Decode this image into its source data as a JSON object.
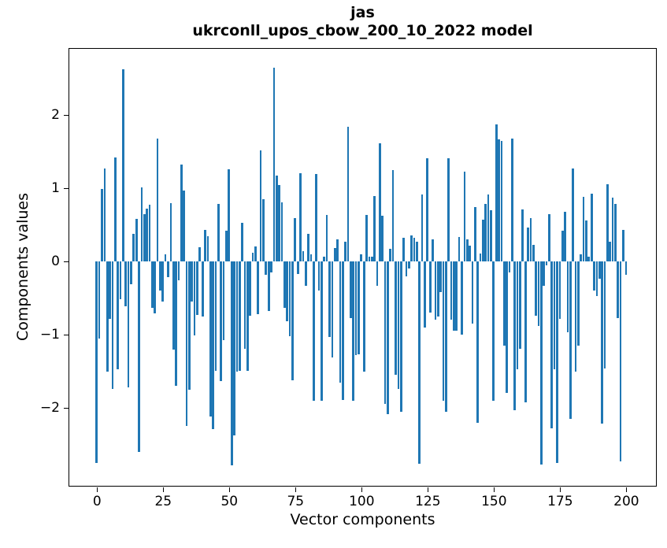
{
  "header": {
    "title_line1": "jas",
    "title_line2": "ukrconll_upos_cbow_200_10_2022 model"
  },
  "chart_data": {
    "type": "bar",
    "title": "jas\nukrconll_upos_cbow_200_10_2022 model",
    "xlabel": "Vector components",
    "ylabel": "Components values",
    "bar_color": "#1f77b4",
    "grid": false,
    "legend": null,
    "x_start": 0,
    "xticks": [
      0,
      25,
      50,
      75,
      100,
      125,
      150,
      175,
      200
    ],
    "yticks": [
      -2,
      -1,
      0,
      1,
      2
    ],
    "xlim": [
      -10.5,
      211.2
    ],
    "ylim": [
      -3.06,
      2.91
    ],
    "values": [
      -2.75,
      -1.05,
      0.99,
      1.27,
      -1.51,
      -0.79,
      -1.74,
      1.42,
      -1.47,
      -0.52,
      2.62,
      -0.61,
      -1.72,
      -0.31,
      0.38,
      0.58,
      -2.6,
      1.01,
      0.65,
      0.72,
      0.78,
      -0.63,
      -0.71,
      1.68,
      -0.4,
      -0.55,
      0.1,
      -0.22,
      0.8,
      -1.2,
      -1.7,
      -0.26,
      1.32,
      0.97,
      -2.25,
      -1.75,
      -0.55,
      -1.01,
      -0.73,
      0.19,
      -0.75,
      0.43,
      0.34,
      -2.12,
      -2.29,
      -1.5,
      0.79,
      -1.64,
      -1.08,
      0.42,
      1.26,
      -2.79,
      -2.38,
      -1.51,
      -1.5,
      0.53,
      -1.19,
      -1.5,
      -0.74,
      0.12,
      0.21,
      -0.72,
      1.52,
      0.85,
      -0.18,
      -0.68,
      -0.15,
      2.65,
      1.17,
      1.04,
      0.81,
      -0.63,
      -0.82,
      -1.02,
      -1.62,
      0.59,
      -0.17,
      1.2,
      0.14,
      -0.33,
      0.38,
      0.1,
      -1.9,
      1.19,
      -0.4,
      -1.9,
      0.07,
      0.63,
      -1.03,
      -1.31,
      0.18,
      0.3,
      -1.66,
      -1.89,
      0.27,
      1.84,
      -0.77,
      -1.9,
      -1.28,
      -1.27,
      0.1,
      -1.51,
      0.64,
      0.06,
      0.07,
      0.89,
      -0.33,
      1.61,
      0.62,
      -1.95,
      -2.09,
      0.17,
      1.25,
      -1.55,
      -1.74,
      -2.05,
      0.32,
      -0.2,
      -0.1,
      0.35,
      0.32,
      0.27,
      -2.76,
      0.92,
      -0.9,
      1.41,
      -0.7,
      0.3,
      -0.8,
      -0.75,
      -0.42,
      -1.9,
      -2.05,
      1.41,
      -0.8,
      -0.95,
      -0.95,
      0.33,
      -1.0,
      1.23,
      0.3,
      0.22,
      -0.85,
      0.74,
      -2.2,
      0.11,
      0.57,
      0.79,
      0.92,
      0.7,
      -1.9,
      1.87,
      1.67,
      1.65,
      -1.15,
      -1.8,
      -0.15,
      1.68,
      -2.03,
      -1.47,
      -1.19,
      0.71,
      -1.92,
      0.46,
      0.59,
      0.23,
      -0.74,
      -0.88,
      -2.78,
      -0.33,
      -0.05,
      0.65,
      -2.28,
      -1.47,
      -2.75,
      -0.79,
      0.42,
      0.68,
      -0.97,
      -2.15,
      1.27,
      -1.51,
      -1.15,
      0.1,
      0.88,
      0.56,
      0.06,
      0.93,
      -0.4,
      -0.47,
      -0.24,
      -2.22,
      -1.46,
      1.05,
      0.27,
      0.87,
      0.79,
      -0.77,
      -2.73,
      0.43,
      -0.18
    ]
  }
}
